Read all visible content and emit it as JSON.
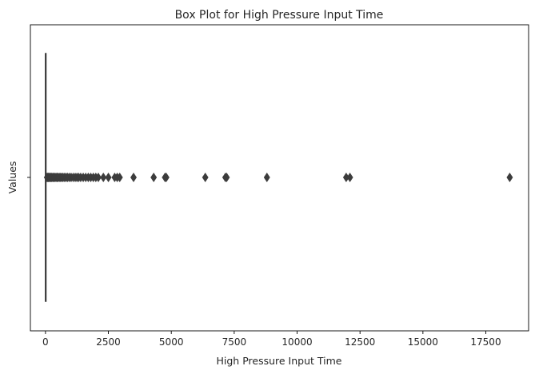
{
  "chart_data": {
    "type": "box",
    "orientation": "horizontal",
    "title": "Box Plot for High Pressure Input Time",
    "xlabel": "High Pressure Input Time",
    "ylabel": "Values",
    "xlim": [
      -600,
      19200
    ],
    "xticks": [
      0,
      2500,
      5000,
      7500,
      10000,
      12500,
      15000,
      17500
    ],
    "xtick_labels": [
      "0",
      "2500",
      "5000",
      "7500",
      "10000",
      "12500",
      "15000",
      "17500"
    ],
    "ytick_labels": [
      ""
    ],
    "grid": false,
    "colors": {
      "box": "#3c3c3c",
      "outlier": "#3c3c3c"
    },
    "box": {
      "whisker_low": 0,
      "q1": 0,
      "median": 0,
      "q3": 20,
      "whisker_high": 50
    },
    "outliers": [
      60,
      80,
      100,
      120,
      150,
      180,
      200,
      230,
      260,
      300,
      340,
      380,
      420,
      460,
      500,
      550,
      600,
      650,
      700,
      760,
      820,
      880,
      950,
      1020,
      1100,
      1180,
      1250,
      1320,
      1400,
      1500,
      1600,
      1700,
      1800,
      1900,
      2000,
      2100,
      2300,
      2500,
      2750,
      2850,
      2950,
      3500,
      4300,
      4750,
      4800,
      6350,
      7150,
      7200,
      8800,
      11950,
      12100,
      18450
    ]
  }
}
